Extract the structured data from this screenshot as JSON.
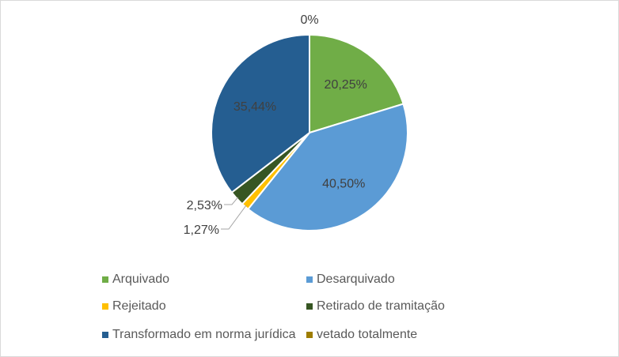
{
  "chart_data": {
    "type": "pie",
    "title": "",
    "slices": [
      {
        "label": "Arquivado",
        "value": 20.25,
        "display": "20,25%",
        "color": "#70ad47"
      },
      {
        "label": "Desarquivado",
        "value": 40.5,
        "display": "40,50%",
        "color": "#5b9bd5"
      },
      {
        "label": "Rejeitado",
        "value": 1.27,
        "display": "1,27%",
        "color": "#ffc000"
      },
      {
        "label": "Retirado de tramitação",
        "value": 2.53,
        "display": "2,53%",
        "color": "#375623"
      },
      {
        "label": "Transformado em norma jurídica",
        "value": 35.44,
        "display": "35,44%",
        "color": "#255e91"
      },
      {
        "label": "vetado totalmente",
        "value": 0,
        "display": "0%",
        "color": "#9e7d00"
      }
    ],
    "legend_position": "bottom",
    "label_color": "#404040"
  }
}
